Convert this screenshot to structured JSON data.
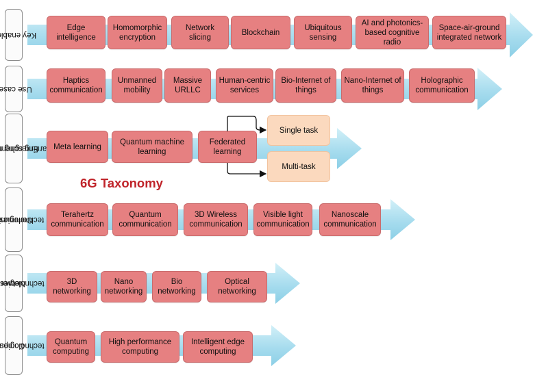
{
  "title": "6G Taxonomy",
  "colors": {
    "box_fill": "#e68081",
    "task_fill": "#fbd9be",
    "arrow_fill": "#a7dcee",
    "title_color": "#c0242a"
  },
  "rows": [
    {
      "label": [
        "Key enablers"
      ],
      "items": [
        [
          "Edge",
          "intelligence"
        ],
        [
          "Homomorphic",
          "encryption"
        ],
        [
          "Network",
          "slicing"
        ],
        [
          "Blockchain"
        ],
        [
          "Ubiquitous",
          "sensing"
        ],
        [
          "AI and photonics-",
          "based cognitive",
          "radio"
        ],
        [
          "Space-air-ground",
          "integrated network"
        ]
      ]
    },
    {
      "label": [
        "Use cases"
      ],
      "items": [
        [
          "Haptics",
          "communication"
        ],
        [
          "Unmanned",
          "mobility"
        ],
        [
          "Massive",
          "URLLC"
        ],
        [
          "Human-centric",
          "services"
        ],
        [
          "Bio-Internet of",
          "things"
        ],
        [
          "Nano-Internet of",
          "things"
        ],
        [
          "Holographic",
          "communication"
        ]
      ]
    },
    {
      "label": [
        "Emerging machine",
        "learning schemes"
      ],
      "items": [
        [
          "Meta learning"
        ],
        [
          "Quantum machine",
          "learning"
        ],
        [
          "Federated",
          "learning"
        ]
      ],
      "tasks": [
        "Single task",
        "Multi-task"
      ]
    },
    {
      "label": [
        "Communication",
        "technologies"
      ],
      "items": [
        [
          "Terahertz",
          "communication"
        ],
        [
          "Quantum",
          "communication"
        ],
        [
          "3D Wireless",
          "communication"
        ],
        [
          "Visible light",
          "communication"
        ],
        [
          "Nanoscale",
          "communication"
        ]
      ]
    },
    {
      "label": [
        "Networking",
        "technologies"
      ],
      "items": [
        [
          "3D",
          "networking"
        ],
        [
          "Nano",
          "networking"
        ],
        [
          "Bio",
          "networking"
        ],
        [
          "Optical",
          "networking"
        ]
      ]
    },
    {
      "label": [
        "Computing",
        "technologies"
      ],
      "items": [
        [
          "Quantum",
          "computing"
        ],
        [
          "High performance",
          "computing"
        ],
        [
          "Intelligent edge",
          "computing"
        ]
      ]
    }
  ]
}
